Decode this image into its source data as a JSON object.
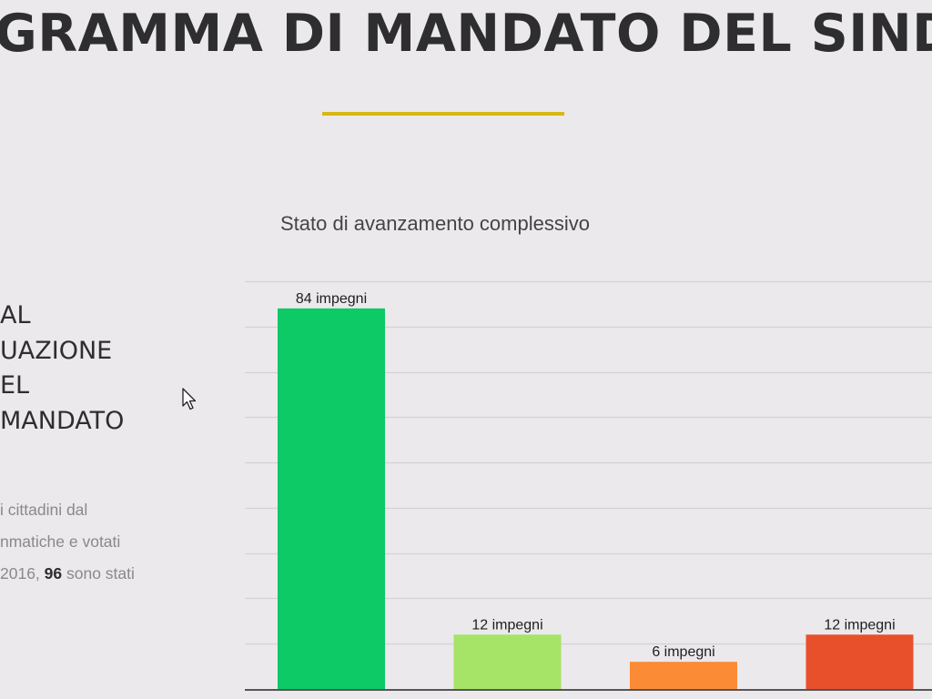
{
  "header": {
    "title": "GRAMMA DI MANDATO DEL SINDA"
  },
  "section": {
    "heading_lines": [
      "AL",
      "UAZIONE",
      "EL",
      "MANDATO"
    ],
    "body": {
      "line1": "i cittadini dal",
      "line2": "nmatiche e votati",
      "line3_before": "2016, ",
      "line3_bold": "96",
      "line3_after": " sono stati"
    }
  },
  "chart_data": {
    "type": "bar",
    "title": "Stato di avanzamento complessivo",
    "categories": [
      "",
      "",
      "",
      ""
    ],
    "values": [
      84,
      12,
      6,
      12
    ],
    "data_labels": [
      "84 impegni",
      "12 impegni",
      "6 impegni",
      "12 impegni"
    ],
    "colors": [
      "#0dc966",
      "#a5e466",
      "#fb8c35",
      "#e8502b"
    ],
    "ylim": [
      0,
      90
    ],
    "grid": true,
    "gridline_color": "#d4d2d6",
    "axis_color": "#555458"
  },
  "icons": {
    "cursor": "mouse-pointer-icon"
  }
}
